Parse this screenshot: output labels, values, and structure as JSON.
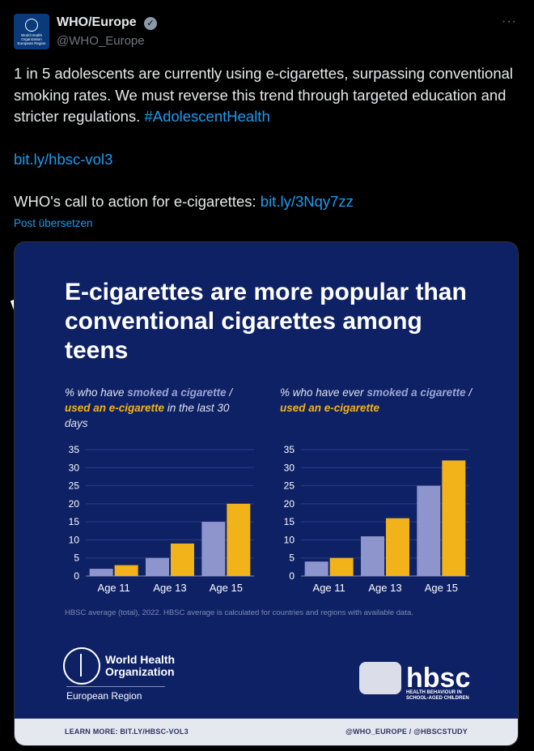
{
  "author": {
    "name": "WHO/Europe",
    "handle": "@WHO_Europe",
    "avatar_text": [
      "World Health",
      "Organization",
      "European Region"
    ]
  },
  "tweet": {
    "text1": "1 in 5 adolescents are currently using e-cigarettes, surpassing conventional smoking rates. We must reverse this trend through targeted education and stricter regulations.",
    "hashtag": "#AdolescentHealth",
    "link1": "bit.ly/hbsc-vol3",
    "cta_text": "WHO's call to action for e-cigarettes:",
    "link2": "bit.ly/3Nqy7zz",
    "translate": "Post übersetzen"
  },
  "card": {
    "title": "E-cigarettes are more popular than conventional cigarettes among teens",
    "left_sub": {
      "pre": "% who have ",
      "a": "smoked  a cigarette",
      "mid": " / ",
      "b": "used an e-cigarette",
      "post": " in the last 30 days"
    },
    "right_sub": {
      "pre": "% who have ever ",
      "a": "smoked a cigarette",
      "mid": " / ",
      "b": "used an e-cigarette"
    },
    "note": "HBSC average (total), 2022. HBSC average is calculated for countries and regions with available data.",
    "who_logo_lines": [
      "World Health",
      "Organization"
    ],
    "who_region": "European Region",
    "hbsc_word": "hbsc",
    "hbsc_tag": "HEALTH BEHAVIOUR IN SCHOOL-AGED CHILDREN",
    "footer_left": "LEARN MORE: BIT.LY/HBSC-VOL3",
    "footer_right": "@WHO_EUROPE / @HBSCSTUDY"
  },
  "colors": {
    "cigarette": "#8d95cc",
    "ecig": "#f2b31a",
    "bg": "#0e2164"
  },
  "chart_data": [
    {
      "type": "bar",
      "categories": [
        "Age 11",
        "Age 13",
        "Age 15"
      ],
      "series": [
        {
          "name": "smoked  a cigarette",
          "values": [
            2,
            5,
            15
          ]
        },
        {
          "name": "used an e-cigarette",
          "values": [
            3,
            9,
            20
          ]
        }
      ],
      "yticks": [
        0,
        5,
        10,
        15,
        20,
        25,
        30,
        35
      ],
      "ylim": [
        0,
        35
      ]
    },
    {
      "type": "bar",
      "categories": [
        "Age 11",
        "Age 13",
        "Age 15"
      ],
      "series": [
        {
          "name": "smoked a cigarette",
          "values": [
            4,
            11,
            25
          ]
        },
        {
          "name": "used an e-cigarette",
          "values": [
            5,
            16,
            32
          ]
        }
      ],
      "yticks": [
        0,
        5,
        10,
        15,
        20,
        25,
        30,
        35
      ],
      "ylim": [
        0,
        35
      ]
    }
  ]
}
